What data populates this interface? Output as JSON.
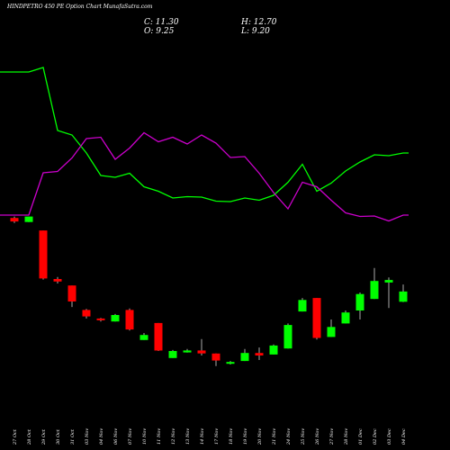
{
  "header": {
    "title": "HINDPETRO 450  PE Option Chart MunafaSutra.com",
    "open_label": "O: 9.25",
    "high_label": "H: 12.70",
    "low_label": "L: 9.20",
    "close_label": "C: 11.30"
  },
  "chart_data": {
    "type": "candlestick",
    "title": "HINDPETRO 450  PE Option Chart MunafaSutra.com",
    "colors": {
      "up": "#00ff00",
      "down": "#ff0000",
      "wick": "#aaaaaa",
      "line_green": "#00ff00",
      "line_magenta": "#cc00cc",
      "background": "#000000"
    },
    "categories": [
      "27 Oct",
      "28 Oct",
      "29 Oct",
      "30 Oct",
      "31 Oct",
      "03 Nov",
      "04 Nov",
      "06 Nov",
      "07 Nov",
      "10 Nov",
      "11 Nov",
      "12 Nov",
      "13 Nov",
      "14 Nov",
      "17 Nov",
      "18 Nov",
      "19 Nov",
      "20 Nov",
      "21 Nov",
      "24 Nov",
      "25 Nov",
      "26 Nov",
      "27 Nov",
      "28 Nov",
      "01 Dec",
      "02 Dec",
      "03 Dec",
      "04 Dec"
    ],
    "ohlc": [
      {
        "o": 26.0,
        "h": 26.3,
        "l": 25.0,
        "c": 25.3
      },
      {
        "o": 25.2,
        "h": 26.3,
        "l": 25.2,
        "c": 26.3
      },
      {
        "o": 23.5,
        "h": 23.5,
        "l": 13.7,
        "c": 13.9
      },
      {
        "o": 13.8,
        "h": 14.2,
        "l": 12.9,
        "c": 13.3
      },
      {
        "o": 12.5,
        "h": 12.5,
        "l": 8.2,
        "c": 9.3
      },
      {
        "o": 7.6,
        "h": 7.8,
        "l": 5.9,
        "c": 6.3
      },
      {
        "o": 5.9,
        "h": 6.0,
        "l": 5.3,
        "c": 5.6
      },
      {
        "o": 5.3,
        "h": 6.8,
        "l": 5.3,
        "c": 6.6
      },
      {
        "o": 7.6,
        "h": 7.9,
        "l": 3.5,
        "c": 3.7
      },
      {
        "o": 1.6,
        "h": 3.0,
        "l": 1.6,
        "c": 2.6
      },
      {
        "o": 5.0,
        "h": 5.0,
        "l": -0.6,
        "c": -0.5
      },
      {
        "o": -2.0,
        "h": -0.4,
        "l": -2.0,
        "c": -0.6
      },
      {
        "o": -0.9,
        "h": -0.2,
        "l": -0.9,
        "c": -0.5
      },
      {
        "o": -0.5,
        "h": 1.8,
        "l": -1.5,
        "c": -1.1
      },
      {
        "o": -1.1,
        "h": -1.1,
        "l": -3.6,
        "c": -2.5
      },
      {
        "o": -3.0,
        "h": -2.6,
        "l": -3.3,
        "c": -2.8
      },
      {
        "o": -2.6,
        "h": -0.2,
        "l": -2.6,
        "c": -1.0
      },
      {
        "o": -1.0,
        "h": 0.1,
        "l": -2.4,
        "c": -1.5
      },
      {
        "o": -1.3,
        "h": 0.7,
        "l": -1.3,
        "c": 0.5
      },
      {
        "o": -0.1,
        "h": 4.9,
        "l": -0.1,
        "c": 4.6
      },
      {
        "o": 7.3,
        "h": 10.0,
        "l": 7.3,
        "c": 9.6
      },
      {
        "o": 10.0,
        "h": 10.0,
        "l": 1.7,
        "c": 2.0
      },
      {
        "o": 2.2,
        "h": 5.7,
        "l": 2.2,
        "c": 4.2
      },
      {
        "o": 4.9,
        "h": 7.5,
        "l": 4.9,
        "c": 7.1
      },
      {
        "o": 7.5,
        "h": 11.1,
        "l": 5.7,
        "c": 10.8
      },
      {
        "o": 9.8,
        "h": 16.0,
        "l": 9.8,
        "c": 13.4
      },
      {
        "o": 13.1,
        "h": 14.1,
        "l": 8.0,
        "c": 13.6
      },
      {
        "o": 9.25,
        "h": 12.7,
        "l": 9.2,
        "c": 11.3
      }
    ],
    "line_green": [
      96,
      96,
      97,
      83,
      82,
      78,
      73,
      72.6,
      73.5,
      70.5,
      69.5,
      68,
      68.3,
      68.2,
      67.3,
      67.2,
      68,
      67.5,
      68.6,
      71.5,
      75.5,
      69.5,
      71.3,
      74,
      76,
      77.6,
      77.4,
      78
    ],
    "line_magenta": [
      64.2,
      64.2,
      73.6,
      73.9,
      76.9,
      81.2,
      81.5,
      76.6,
      79.1,
      82.5,
      80.5,
      81.5,
      80,
      82,
      80.2,
      77,
      77.2,
      73.5,
      69.2,
      65.6,
      71.5,
      70.5,
      67.5,
      64.7,
      63.9,
      64,
      62.9,
      64.2
    ],
    "ylim_lines": [
      60,
      100
    ],
    "ylim_price": [
      -6,
      30
    ],
    "grid": false,
    "legend": "none"
  }
}
